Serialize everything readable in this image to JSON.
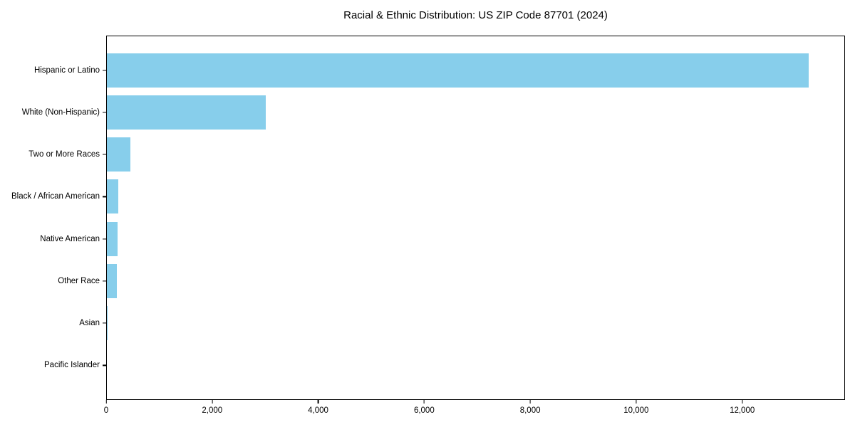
{
  "title": "Racial & Ethnic Distribution: US ZIP Code 87701 (2024)",
  "chart_data": {
    "type": "bar",
    "orientation": "horizontal",
    "title": "Racial & Ethnic Distribution: US ZIP Code 87701 (2024)",
    "xlabel": "",
    "ylabel": "",
    "categories": [
      "Hispanic or Latino",
      "White (Non-Hispanic)",
      "Two or More Races",
      "Black / African American",
      "Native American",
      "Other Race",
      "Asian",
      "Pacific Islander"
    ],
    "values": [
      13230,
      2990,
      440,
      210,
      200,
      185,
      15,
      0
    ],
    "xlim": [
      0,
      13900
    ],
    "xticks": [
      0,
      2000,
      4000,
      6000,
      8000,
      10000,
      12000
    ],
    "xtick_labels": [
      "0",
      "2,000",
      "4,000",
      "6,000",
      "8,000",
      "10,000",
      "12,000"
    ],
    "bar_color": "#87CEEB",
    "grid": false,
    "legend_position": "none"
  },
  "colors": {
    "bar": "#87CEEB",
    "frame": "#000000",
    "background": "#FFFFFF",
    "text": "#000000"
  }
}
